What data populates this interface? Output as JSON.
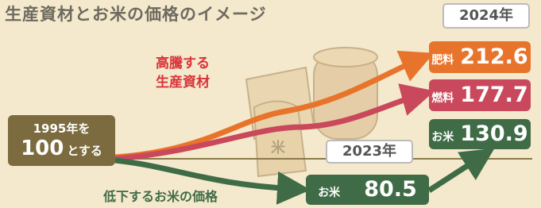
{
  "title": "生産資材とお米の価格のイメージ",
  "baseline": {
    "line1": "1995年を",
    "value": 100,
    "suffix": "とする"
  },
  "rising_label": [
    "高騰する",
    "生産資材"
  ],
  "falling_label": "低下するお米の価格",
  "year_2024": "2024年",
  "items_2024": [
    {
      "name": "肥料",
      "value": 212.6
    },
    {
      "name": "燃料",
      "value": 177.7
    },
    {
      "name": "お米",
      "value": 130.9
    }
  ],
  "year_2023": "2023年",
  "item_2023": {
    "name": "お米",
    "value": 80.5
  }
}
